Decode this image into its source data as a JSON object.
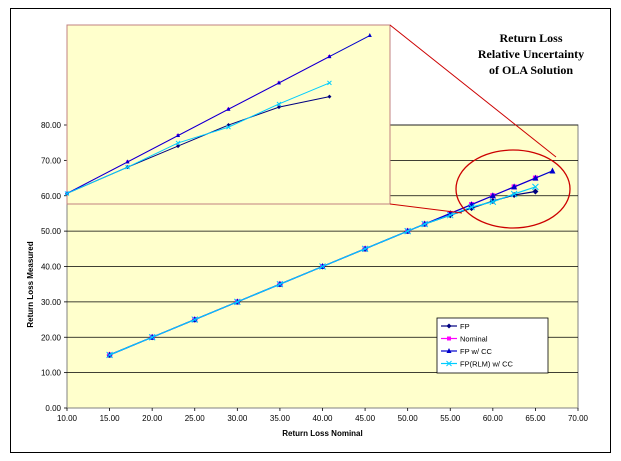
{
  "chart_data": {
    "type": "line",
    "title_lines": [
      "Return Loss",
      "Relative Uncertainty",
      "of OLA Solution"
    ],
    "xlabel": "Return Loss Nominal",
    "ylabel": "Return Loss Measured",
    "xlim": [
      10,
      70
    ],
    "ylim": [
      0,
      80
    ],
    "xticks": [
      "10.00",
      "15.00",
      "20.00",
      "25.00",
      "30.00",
      "35.00",
      "40.00",
      "45.00",
      "50.00",
      "55.00",
      "60.00",
      "65.00",
      "70.00"
    ],
    "yticks": [
      "0.00",
      "10.00",
      "20.00",
      "30.00",
      "40.00",
      "50.00",
      "60.00",
      "70.00",
      "80.00"
    ],
    "grid": "horizontal",
    "legend_position": "bottom-right",
    "series": [
      {
        "name": "FP",
        "color": "#000080",
        "marker": "diamond",
        "x": [
          15,
          20,
          25,
          30,
          35,
          40,
          45,
          50,
          52,
          55,
          57.5,
          60,
          62.5,
          65
        ],
        "y": [
          15,
          20,
          25,
          30,
          35,
          40,
          45,
          50,
          52,
          54.5,
          56.5,
          58.5,
          60.2,
          61.2
        ]
      },
      {
        "name": "Nominal",
        "color": "#ff00ff",
        "marker": "square",
        "x": [
          15,
          20,
          25,
          30,
          35,
          40,
          45,
          50,
          52,
          55,
          57.5,
          60,
          62.5,
          65
        ],
        "y": [
          15,
          20,
          25,
          30,
          35,
          40,
          45,
          50,
          52,
          55,
          57.5,
          60,
          62.5,
          65
        ]
      },
      {
        "name": "FP w/ CC",
        "color": "#0000cc",
        "marker": "triangle",
        "x": [
          15,
          20,
          25,
          30,
          35,
          40,
          45,
          50,
          52,
          55,
          57.5,
          60,
          62.5,
          65,
          67
        ],
        "y": [
          15,
          20,
          25,
          30,
          35,
          40,
          45,
          50,
          52,
          55,
          57.5,
          60,
          62.5,
          65,
          67
        ]
      },
      {
        "name": "FP(RLM) w/ CC",
        "color": "#00ccff",
        "marker": "cross",
        "x": [
          15,
          20,
          25,
          30,
          35,
          40,
          45,
          50,
          52,
          55,
          57.5,
          60,
          62.5,
          65
        ],
        "y": [
          15,
          20,
          25,
          30,
          35,
          40,
          45,
          50,
          52,
          54.5,
          56.8,
          58.3,
          60.5,
          62.5
        ]
      }
    ]
  }
}
